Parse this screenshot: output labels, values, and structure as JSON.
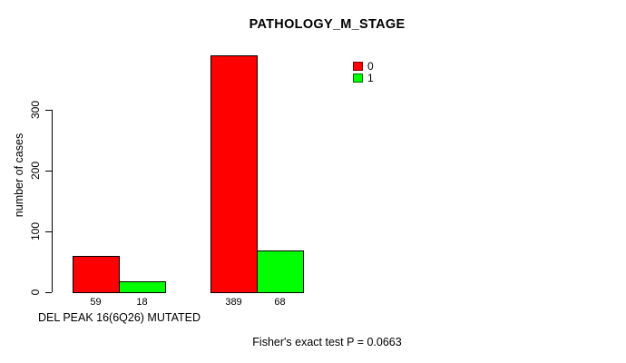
{
  "chart_data": {
    "type": "bar",
    "title": "PATHOLOGY_M_STAGE",
    "ylabel": "number of cases",
    "xlabel": "DEL PEAK 16(6Q26) MUTATED",
    "footnote": "Fisher's exact test P = 0.0663",
    "yticks": [
      0,
      100,
      200,
      300
    ],
    "ylim": [
      0,
      390
    ],
    "grid": false,
    "background": "#ffffff",
    "legend": {
      "position": "top-right",
      "entries": [
        {
          "label": "0",
          "color": "#ff0000"
        },
        {
          "label": "1",
          "color": "#00ff00"
        }
      ]
    },
    "bars": [
      {
        "group": 0,
        "series": "0",
        "value": 59,
        "label": "59",
        "color": "#ff0000"
      },
      {
        "group": 0,
        "series": "1",
        "value": 18,
        "label": "18",
        "color": "#00ff00"
      },
      {
        "group": 1,
        "series": "0",
        "value": 389,
        "label": "389",
        "color": "#ff0000"
      },
      {
        "group": 1,
        "series": "1",
        "value": 68,
        "label": "68",
        "color": "#00ff00"
      }
    ]
  }
}
